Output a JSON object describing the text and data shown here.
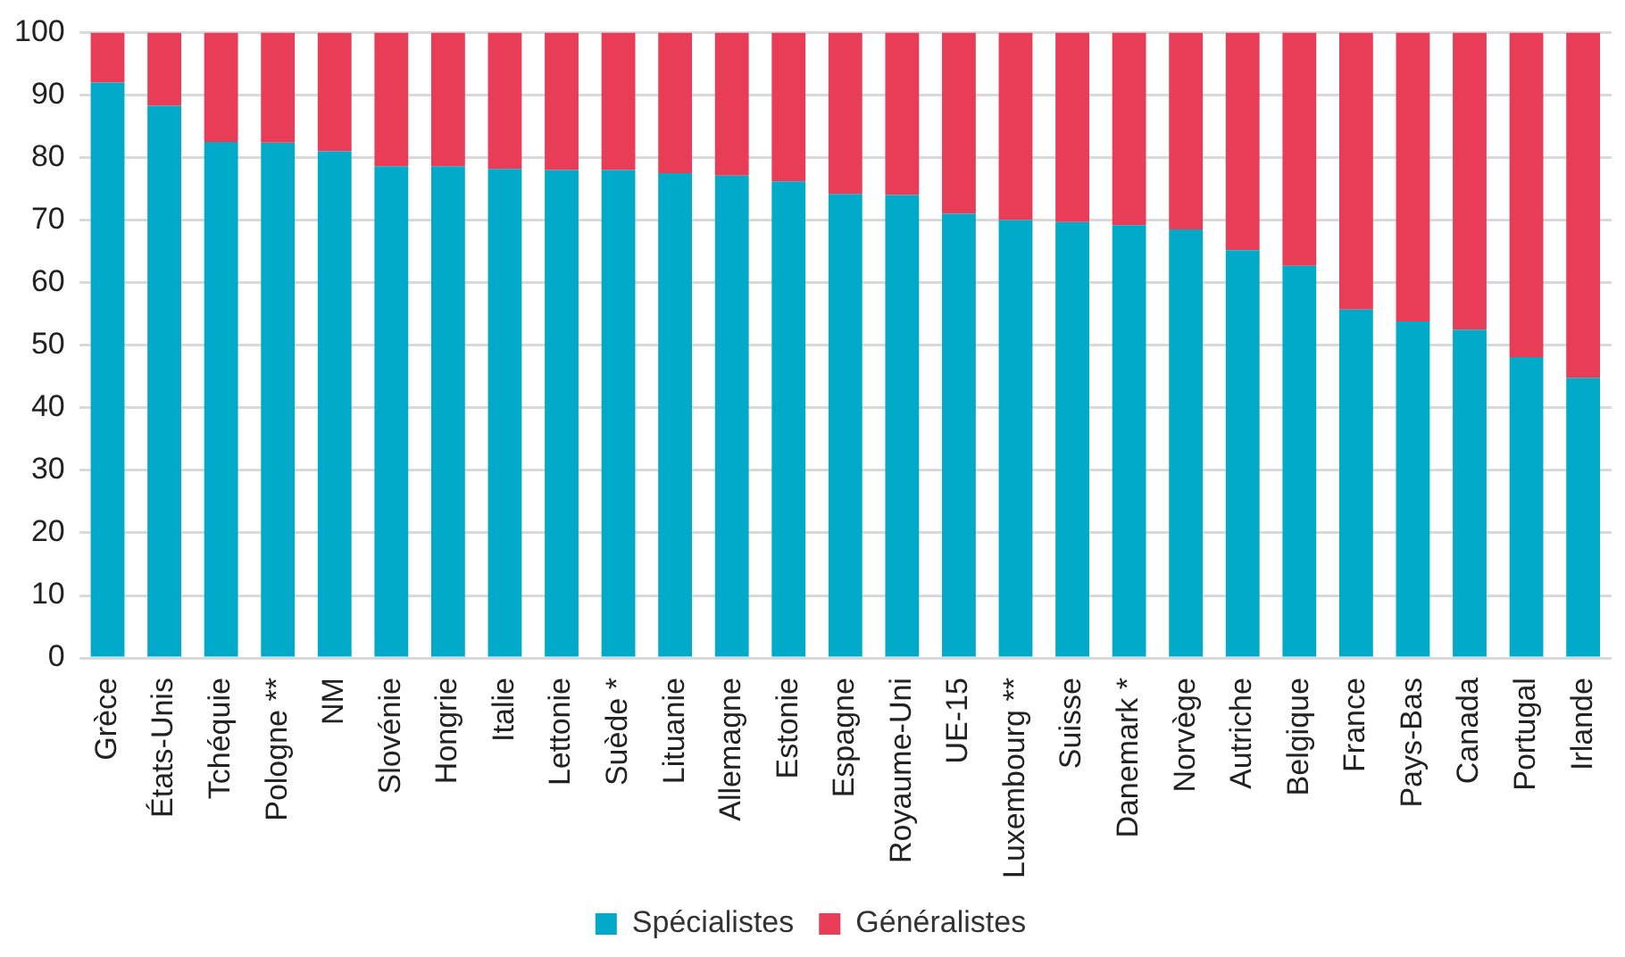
{
  "chart_data": {
    "type": "bar",
    "stacked": true,
    "categories": [
      "Grèce",
      "États-Unis",
      "Tchéquie",
      "Pologne **",
      "NM",
      "Slovénie",
      "Hongrie",
      "Italie",
      "Lettonie",
      "Suède *",
      "Lituanie",
      "Allemagne",
      "Estonie",
      "Espagne",
      "Royaume-Uni",
      "UE-15",
      "Luxembourg **",
      "Suisse",
      "Danemark *",
      "Norvège",
      "Autriche",
      "Belgique",
      "France",
      "Pays-Bas",
      "Canada",
      "Portugal",
      "Irlande"
    ],
    "series": [
      {
        "name": "Spécialistes",
        "color": "#00aac8",
        "values": [
          92,
          88.3,
          82.5,
          82.4,
          81,
          78.6,
          78.6,
          78.2,
          78,
          78,
          77.5,
          77.1,
          76.2,
          74.2,
          74,
          71,
          70,
          69.7,
          69.2,
          68.5,
          65.2,
          62.7,
          55.7,
          53.8,
          52.5,
          48.1,
          44.8
        ]
      },
      {
        "name": "Généralistes",
        "color": "#e83c57",
        "values": [
          8,
          11.7,
          17.5,
          17.6,
          19,
          21.4,
          21.4,
          21.8,
          22,
          22,
          22.5,
          22.9,
          23.8,
          25.8,
          26,
          29,
          30,
          30.3,
          30.8,
          31.5,
          34.8,
          37.3,
          44.3,
          46.2,
          47.5,
          51.9,
          55.2
        ]
      }
    ],
    "ylim": [
      0,
      100
    ],
    "yticks": [
      0,
      10,
      20,
      30,
      40,
      50,
      60,
      70,
      80,
      90,
      100
    ],
    "grid": "y",
    "legend": "bottom"
  }
}
